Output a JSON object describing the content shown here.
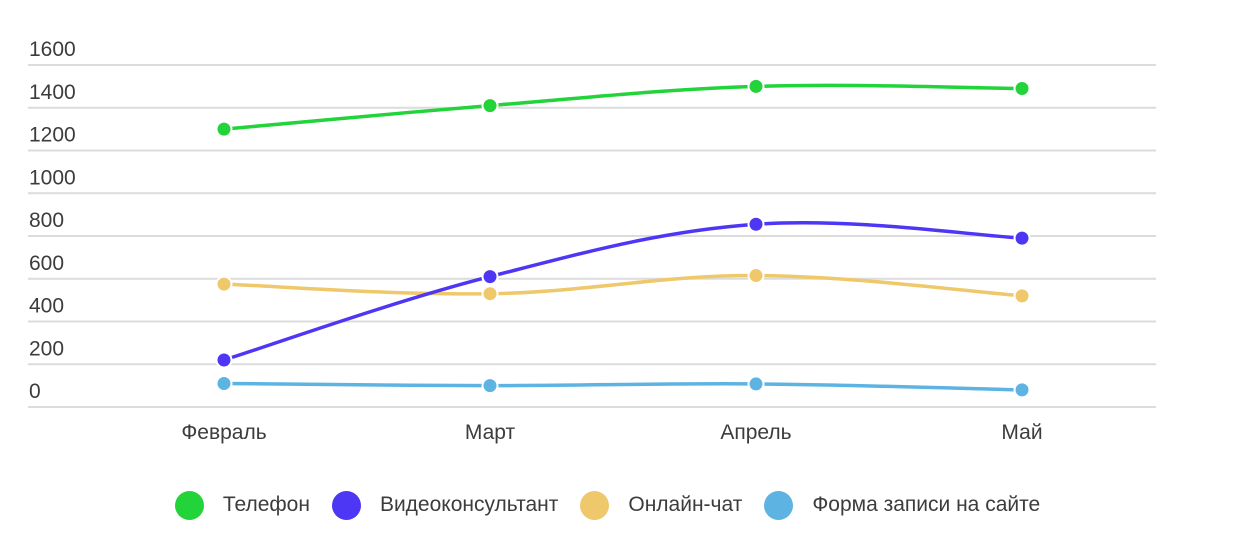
{
  "chart_data": {
    "type": "line",
    "title": "",
    "xlabel": "",
    "ylabel": "",
    "categories": [
      "Февраль",
      "Март",
      "Апрель",
      "Май"
    ],
    "y_ticks": [
      0,
      200,
      400,
      600,
      800,
      1000,
      1200,
      1400,
      1600
    ],
    "ylim": [
      0,
      1600
    ],
    "grid": true,
    "legend_position": "bottom",
    "smooth": true,
    "series": [
      {
        "name": "Телефон",
        "color": "#22d33a",
        "values": [
          1300,
          1410,
          1500,
          1490
        ]
      },
      {
        "name": "Видеоконсультант",
        "color": "#4e36f5",
        "values": [
          220,
          610,
          855,
          790
        ]
      },
      {
        "name": "Онлайн-чат",
        "color": "#eec86a",
        "values": [
          575,
          530,
          615,
          520
        ]
      },
      {
        "name": "Форма записи на сайте",
        "color": "#5db4e3",
        "values": [
          110,
          100,
          108,
          80
        ]
      }
    ]
  },
  "legend": {
    "items": [
      {
        "label": "Телефон",
        "color": "#22d33a"
      },
      {
        "label": "Видеоконсультант",
        "color": "#4e36f5"
      },
      {
        "label": "Онлайн-чат",
        "color": "#eec86a"
      },
      {
        "label": "Форма записи на сайте",
        "color": "#5db4e3"
      }
    ]
  }
}
